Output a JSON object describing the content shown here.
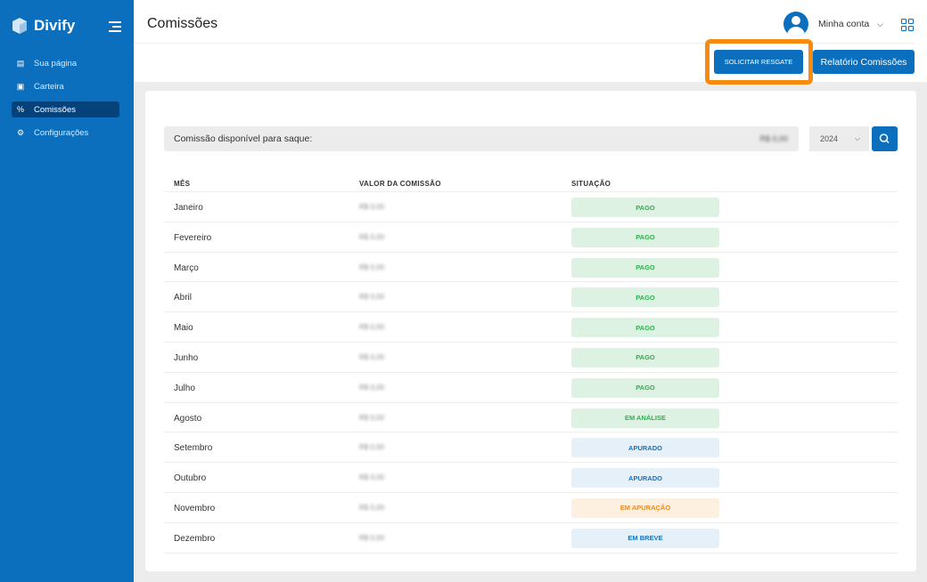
{
  "sidebar": {
    "brand": "Divify",
    "items": [
      {
        "label": "Sua página",
        "icon": "page-icon"
      },
      {
        "label": "Carteira",
        "icon": "wallet-icon"
      },
      {
        "label": "Comissões",
        "icon": "percent-icon",
        "active": true
      },
      {
        "label": "Configurações",
        "icon": "gear-icon"
      }
    ]
  },
  "header": {
    "title": "Comissões",
    "account": "Minha conta"
  },
  "actions": {
    "request": "SOLICITAR RESGATE",
    "report": "Relatório Comissões"
  },
  "available": {
    "label": "Comissão disponível para saque:",
    "value": "R$ 0,00"
  },
  "filter": {
    "year": "2024"
  },
  "table": {
    "headers": [
      "MÊS",
      "VALOR DA COMISSÃO",
      "SITUAÇÃO"
    ],
    "rows": [
      {
        "month": "Janeiro",
        "value": "R$ 0,00",
        "status": "PAGO"
      },
      {
        "month": "Fevereiro",
        "value": "R$ 0,00",
        "status": "PAGO"
      },
      {
        "month": "Março",
        "value": "R$ 0,00",
        "status": "PAGO"
      },
      {
        "month": "Abril",
        "value": "R$ 0,00",
        "status": "PAGO"
      },
      {
        "month": "Maio",
        "value": "R$ 0,00",
        "status": "PAGO"
      },
      {
        "month": "Junho",
        "value": "R$ 0,00",
        "status": "PAGO"
      },
      {
        "month": "Julho",
        "value": "R$ 0,00",
        "status": "PAGO"
      },
      {
        "month": "Agosto",
        "value": "R$ 0,00",
        "status": "EM ANÁLISE"
      },
      {
        "month": "Setembro",
        "value": "R$ 0,00",
        "status": "APURADO"
      },
      {
        "month": "Outubro",
        "value": "R$ 0,00",
        "status": "APURADO"
      },
      {
        "month": "Novembro",
        "value": "R$ 0,00",
        "status": "EM APURAÇÃO"
      },
      {
        "month": "Dezembro",
        "value": "R$ 0,00",
        "status": "EM BREVE"
      }
    ]
  },
  "colors": {
    "brand": "#0b6fbe",
    "highlight": "#f68b0f",
    "pago": "#ddf2e3",
    "apurado": "#e6f0f8",
    "apuracao": "#fdf0e1"
  }
}
